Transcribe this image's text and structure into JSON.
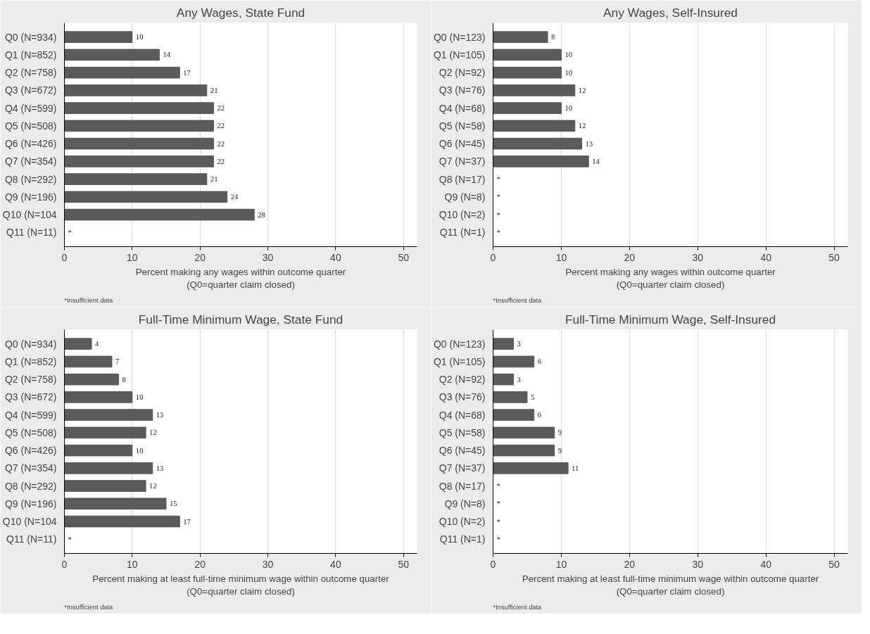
{
  "chart_data": [
    {
      "type": "bar",
      "orientation": "horizontal",
      "title": "Any Wages, State Fund",
      "xlabel": "Percent making any wages within outcome quarter\n(Q0=quarter claim closed)",
      "annotations": [
        "*Insufficient data"
      ],
      "categories": [
        "Q0 (N=934)",
        "Q1 (N=852)",
        "Q2 (N=758)",
        "Q3 (N=672)",
        "Q4 (N=599)",
        "Q5 (N=508)",
        "Q6 (N=426)",
        "Q7 (N=354)",
        "Q8 (N=292)",
        "Q9 (N=196)",
        "Q10 (N=104",
        "Q11 (N=11)"
      ],
      "values": [
        10,
        14,
        17,
        21,
        22,
        22,
        22,
        22,
        21,
        24,
        28,
        null
      ],
      "value_labels": [
        "10",
        "14",
        "17",
        "21",
        "22",
        "22",
        "22",
        "22",
        "21",
        "24",
        "28",
        "*"
      ],
      "color": "#5a5a5a",
      "xlim": [
        0,
        52
      ],
      "xticks": [
        0,
        10,
        20,
        30,
        40,
        50
      ],
      "grid": "x",
      "legend": false
    },
    {
      "type": "bar",
      "orientation": "horizontal",
      "title": "Any Wages, Self-Insured",
      "xlabel": "Percent making any wages within outcome quarter\n(Q0=quarter claim closed)",
      "annotations": [
        "*Insufficient data"
      ],
      "categories": [
        "Q0 (N=123)",
        "Q1 (N=105)",
        "Q2 (N=92)",
        "Q3 (N=76)",
        "Q4 (N=68)",
        "Q5 (N=58)",
        "Q6 (N=45)",
        "Q7 (N=37)",
        "Q8 (N=17)",
        "Q9 (N=8)",
        "Q10 (N=2)",
        "Q11 (N=1)"
      ],
      "values": [
        8,
        10,
        10,
        12,
        10,
        12,
        13,
        14,
        null,
        null,
        null,
        null
      ],
      "value_labels": [
        "8",
        "10",
        "10",
        "12",
        "10",
        "12",
        "13",
        "14",
        "*",
        "*",
        "*",
        "*"
      ],
      "color": "#5a5a5a",
      "xlim": [
        0,
        52
      ],
      "xticks": [
        0,
        10,
        20,
        30,
        40,
        50
      ],
      "grid": "x",
      "legend": false
    },
    {
      "type": "bar",
      "orientation": "horizontal",
      "title": "Full-Time Minimum Wage, State Fund",
      "xlabel": "Percent making at least full-time minimum wage within outcome quarter\n(Q0=quarter claim closed)",
      "annotations": [
        "*Insufficient data"
      ],
      "categories": [
        "Q0 (N=934)",
        "Q1 (N=852)",
        "Q2 (N=758)",
        "Q3 (N=672)",
        "Q4 (N=599)",
        "Q5 (N=508)",
        "Q6 (N=426)",
        "Q7 (N=354)",
        "Q8 (N=292)",
        "Q9 (N=196)",
        "Q10 (N=104",
        "Q11 (N=11)"
      ],
      "values": [
        4,
        7,
        8,
        10,
        13,
        12,
        10,
        13,
        12,
        15,
        17,
        null
      ],
      "value_labels": [
        "4",
        "7",
        "8",
        "10",
        "13",
        "12",
        "10",
        "13",
        "12",
        "15",
        "17",
        "*"
      ],
      "color": "#5a5a5a",
      "xlim": [
        0,
        52
      ],
      "xticks": [
        0,
        10,
        20,
        30,
        40,
        50
      ],
      "grid": "x",
      "legend": false
    },
    {
      "type": "bar",
      "orientation": "horizontal",
      "title": "Full-Time Minimum Wage, Self-Insured",
      "xlabel": "Percent making at least full-time minimum wage within outcome quarter\n(Q0=quarter claim closed)",
      "annotations": [
        "*Insufficient data"
      ],
      "categories": [
        "Q0 (N=123)",
        "Q1 (N=105)",
        "Q2 (N=92)",
        "Q3 (N=76)",
        "Q4 (N=68)",
        "Q5 (N=58)",
        "Q6 (N=45)",
        "Q7 (N=37)",
        "Q8 (N=17)",
        "Q9 (N=8)",
        "Q10 (N=2)",
        "Q11 (N=1)"
      ],
      "values": [
        3,
        6,
        3,
        5,
        6,
        9,
        9,
        11,
        null,
        null,
        null,
        null
      ],
      "value_labels": [
        "3",
        "6",
        "3",
        "5",
        "6",
        "9",
        "9",
        "11",
        "*",
        "*",
        "*",
        "*"
      ],
      "color": "#5a5a5a",
      "xlim": [
        0,
        52
      ],
      "xticks": [
        0,
        10,
        20,
        30,
        40,
        50
      ],
      "grid": "x",
      "legend": false
    }
  ]
}
